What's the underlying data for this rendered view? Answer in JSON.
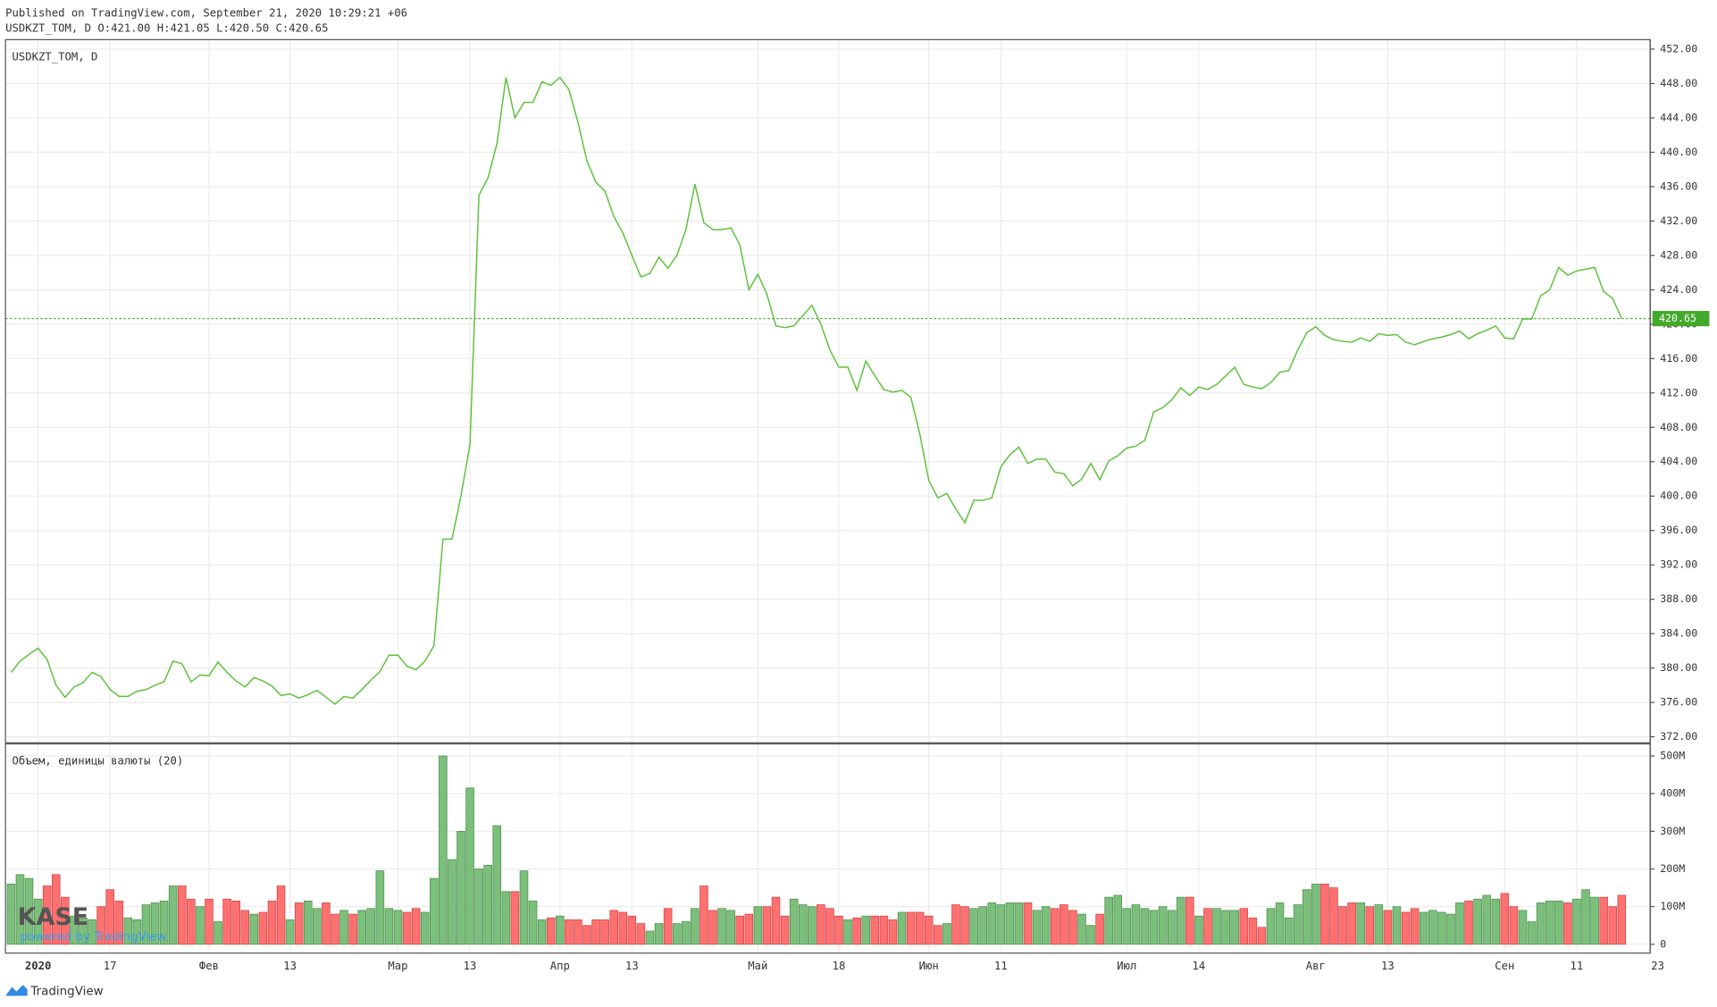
{
  "header": {
    "published": "Published on TradingView.com, September 21, 2020 10:29:21 +06",
    "ohlc": "USDKZT_TOM, D O:421.00 H:421.05 L:420.50 C:420.65"
  },
  "logo": {
    "name": "KASE",
    "tagline": "powered by TradingView"
  },
  "footer": "TradingView",
  "chart_data": [
    {
      "type": "line",
      "grid": true,
      "categories": [
        null,
        null,
        null,
        "2020",
        null,
        null,
        null,
        null,
        null,
        null,
        null,
        "17",
        null,
        null,
        null,
        null,
        null,
        null,
        null,
        null,
        null,
        null,
        "Фев",
        null,
        null,
        null,
        null,
        null,
        null,
        null,
        null,
        "13",
        null,
        null,
        null,
        null,
        null,
        null,
        null,
        null,
        null,
        null,
        null,
        "Мар",
        null,
        null,
        null,
        null,
        null,
        null,
        null,
        "13",
        null,
        null,
        null,
        null,
        null,
        null,
        null,
        null,
        null,
        "Апр",
        null,
        null,
        null,
        null,
        null,
        null,
        null,
        "13",
        null,
        null,
        null,
        null,
        null,
        null,
        null,
        null,
        null,
        null,
        null,
        null,
        null,
        "Май",
        null,
        null,
        null,
        null,
        null,
        null,
        null,
        null,
        "18",
        null,
        null,
        null,
        null,
        null,
        null,
        null,
        null,
        null,
        "Июн",
        null,
        null,
        null,
        null,
        null,
        null,
        null,
        "11",
        null,
        null,
        null,
        null,
        null,
        null,
        null,
        null,
        null,
        null,
        null,
        null,
        null,
        "Июл",
        null,
        null,
        null,
        null,
        null,
        null,
        null,
        "14",
        null,
        null,
        null,
        null,
        null,
        null,
        null,
        null,
        null,
        null,
        null,
        null,
        "Авг",
        null,
        null,
        null,
        null,
        null,
        null,
        null,
        "13",
        null,
        null,
        null,
        null,
        null,
        null,
        null,
        null,
        null,
        null,
        null,
        null,
        "Сен",
        null,
        null,
        null,
        null,
        null,
        null,
        null,
        "11",
        null,
        null,
        null,
        null,
        null,
        null,
        null,
        null,
        "23"
      ],
      "series": [
        {
          "name": "USDKZT_TOM, D",
          "color": "#5cc13b",
          "values": [
            379.5,
            380.8,
            381.6,
            382.3,
            381,
            378,
            376.6,
            377.8,
            378.3,
            379.5,
            379,
            377.5,
            376.7,
            376.7,
            377.3,
            377.5,
            378,
            378.4,
            380.8,
            380.5,
            378.4,
            379.2,
            379.1,
            380.7,
            379.5,
            378.5,
            377.8,
            378.9,
            378.5,
            377.9,
            376.8,
            377,
            376.5,
            376.9,
            377.4,
            376.6,
            375.8,
            376.7,
            376.5,
            377.5,
            378.6,
            379.6,
            381.5,
            381.5,
            380.2,
            379.8,
            380.8,
            382.6,
            395,
            395,
            400,
            406,
            435,
            437,
            441,
            448.7,
            444,
            445.8,
            445.8,
            448.2,
            447.8,
            448.7,
            447.3,
            443.5,
            439,
            436.5,
            435.5,
            432.5,
            430.6,
            428,
            425.5,
            425.9,
            427.8,
            426.5,
            428,
            431,
            436.3,
            431.8,
            431,
            431,
            431.2,
            429.2,
            424,
            425.8,
            423.5,
            419.8,
            419.6,
            419.8,
            421,
            422.2,
            420,
            417,
            415,
            415,
            412.3,
            415.7,
            414,
            412.4,
            412.1,
            412.3,
            411.5,
            407.2,
            401.8,
            399.8,
            400.3,
            398.5,
            396.9,
            399.5,
            399.5,
            399.8,
            403.4,
            404.8,
            405.7,
            403.8,
            404.3,
            404.3,
            402.8,
            402.6,
            401.2,
            402,
            403.8,
            401.9,
            404.1,
            404.7,
            405.6,
            405.8,
            406.5,
            409.8,
            410.3,
            411.2,
            412.6,
            411.7,
            412.7,
            412.4,
            413,
            414,
            415,
            413,
            412.7,
            412.5,
            413.2,
            414.4,
            414.6,
            417,
            419,
            419.7,
            418.7,
            418.2,
            418,
            417.9,
            418.4,
            418,
            418.9,
            418.7,
            418.8,
            417.9,
            417.6,
            418,
            418.3,
            418.5,
            418.8,
            419.2,
            418.3,
            418.9,
            419.3,
            419.8,
            418.4,
            418.3,
            420.6,
            420.6,
            423.3,
            424,
            426.6,
            425.7,
            426.2,
            426.4,
            426.6,
            423.8,
            423,
            420.65,
            null,
            null,
            null,
            null
          ]
        }
      ],
      "ylim": [
        371.3,
        453.1
      ],
      "yticks": [
        {
          "value": 372,
          "label": "372.00"
        },
        {
          "value": 376,
          "label": "376.00"
        },
        {
          "value": 380,
          "label": "380.00"
        },
        {
          "value": 384,
          "label": "384.00"
        },
        {
          "value": 388,
          "label": "388.00"
        },
        {
          "value": 392,
          "label": "392.00"
        },
        {
          "value": 396,
          "label": "396.00"
        },
        {
          "value": 400,
          "label": "400.00"
        },
        {
          "value": 404,
          "label": "404.00"
        },
        {
          "value": 408,
          "label": "408.00"
        },
        {
          "value": 412,
          "label": "412.00"
        },
        {
          "value": 416,
          "label": "416.00"
        },
        {
          "value": 420,
          "label": "420.00"
        },
        {
          "value": 424,
          "label": "424.00"
        },
        {
          "value": 428,
          "label": "428.00"
        },
        {
          "value": 432,
          "label": "432.00"
        },
        {
          "value": 436,
          "label": "436.00"
        },
        {
          "value": 440,
          "label": "440.00"
        },
        {
          "value": 444,
          "label": "444.00"
        },
        {
          "value": 448,
          "label": "448.00"
        },
        {
          "value": 452,
          "label": "452.00"
        }
      ],
      "last_line_color": "#43a92a"
    },
    {
      "type": "bar",
      "grid": true,
      "series": [
        {
          "name": "Объем, единицы валюты (20)",
          "up_color": "#7cbf7c",
          "down_color": "#ff7070",
          "values": [
            160000000.0,
            185000000.0,
            175000000.0,
            120000000.0,
            155000000.0,
            185000000.0,
            125000000.0,
            75000000.0,
            70000000.0,
            65000000.0,
            100000000.0,
            145000000.0,
            115000000.0,
            70000000.0,
            65000000.0,
            105000000.0,
            110000000.0,
            115000000.0,
            155000000.0,
            155000000.0,
            120000000.0,
            100000000.0,
            120000000.0,
            60000000.0,
            120000000.0,
            115000000.0,
            90000000.0,
            80000000.0,
            85000000.0,
            115000000.0,
            155000000.0,
            65000000.0,
            110000000.0,
            115000000.0,
            95000000.0,
            110000000.0,
            80000000.0,
            90000000.0,
            80000000.0,
            90000000.0,
            95000000.0,
            195000000.0,
            95000000.0,
            90000000.0,
            85000000.0,
            95000000.0,
            85000000.0,
            175000000.0,
            500000000.0,
            225000000.0,
            300000000.0,
            415000000.0,
            200000000.0,
            210000000.0,
            315000000.0,
            140000000.0,
            140000000.0,
            195000000.0,
            115000000.0,
            65000000.0,
            70000000.0,
            75000000.0,
            65000000.0,
            65000000.0,
            50000000.0,
            65000000.0,
            65000000.0,
            90000000.0,
            85000000.0,
            75000000.0,
            55000000.0,
            35000000.0,
            55000000.0,
            95000000.0,
            55000000.0,
            60000000.0,
            95000000.0,
            155000000.0,
            90000000.0,
            95000000.0,
            90000000.0,
            75000000.0,
            80000000.0,
            100000000.0,
            100000000.0,
            125000000.0,
            75000000.0,
            120000000.0,
            105000000.0,
            100000000.0,
            105000000.0,
            95000000.0,
            75000000.0,
            65000000.0,
            70000000.0,
            75000000.0,
            75000000.0,
            75000000.0,
            65000000.0,
            85000000.0,
            85000000.0,
            85000000.0,
            75000000.0,
            50000000.0,
            55000000.0,
            105000000.0,
            100000000.0,
            95000000.0,
            100000000.0,
            110000000.0,
            105000000.0,
            110000000.0,
            110000000.0,
            110000000.0,
            90000000.0,
            100000000.0,
            95000000.0,
            105000000.0,
            90000000.0,
            80000000.0,
            50000000.0,
            80000000.0,
            125000000.0,
            130000000.0,
            95000000.0,
            105000000.0,
            95000000.0,
            90000000.0,
            100000000.0,
            90000000.0,
            125000000.0,
            125000000.0,
            75000000.0,
            95000000.0,
            95000000.0,
            90000000.0,
            90000000.0,
            95000000.0,
            70000000.0,
            45000000.0,
            95000000.0,
            110000000.0,
            70000000.0,
            105000000.0,
            145000000.0,
            160000000.0,
            160000000.0,
            150000000.0,
            100000000.0,
            110000000.0,
            110000000.0,
            100000000.0,
            105000000.0,
            90000000.0,
            100000000.0,
            85000000.0,
            95000000.0,
            85000000.0,
            90000000.0,
            85000000.0,
            80000000.0,
            110000000.0,
            115000000.0,
            120000000.0,
            130000000.0,
            120000000.0,
            135000000.0,
            100000000.0,
            90000000.0,
            60000000.0,
            110000000.0,
            115000000.0,
            115000000.0,
            110000000.0,
            120000000.0,
            145000000.0,
            125000000.0,
            125000000.0,
            100000000.0,
            130000000.0,
            null,
            null,
            null,
            null
          ]
        }
      ],
      "ylim": [
        -23400000.0,
        532000000.0
      ],
      "yticks": [
        0,
        {
          "value": 100000000.0,
          "label": "100M"
        },
        {
          "value": 200000000.0,
          "label": "200M"
        },
        {
          "value": 300000000.0,
          "label": "300M"
        },
        {
          "value": 400000000.0,
          "label": "400M"
        },
        {
          "value": 500000000.0,
          "label": "500M"
        }
      ]
    }
  ]
}
